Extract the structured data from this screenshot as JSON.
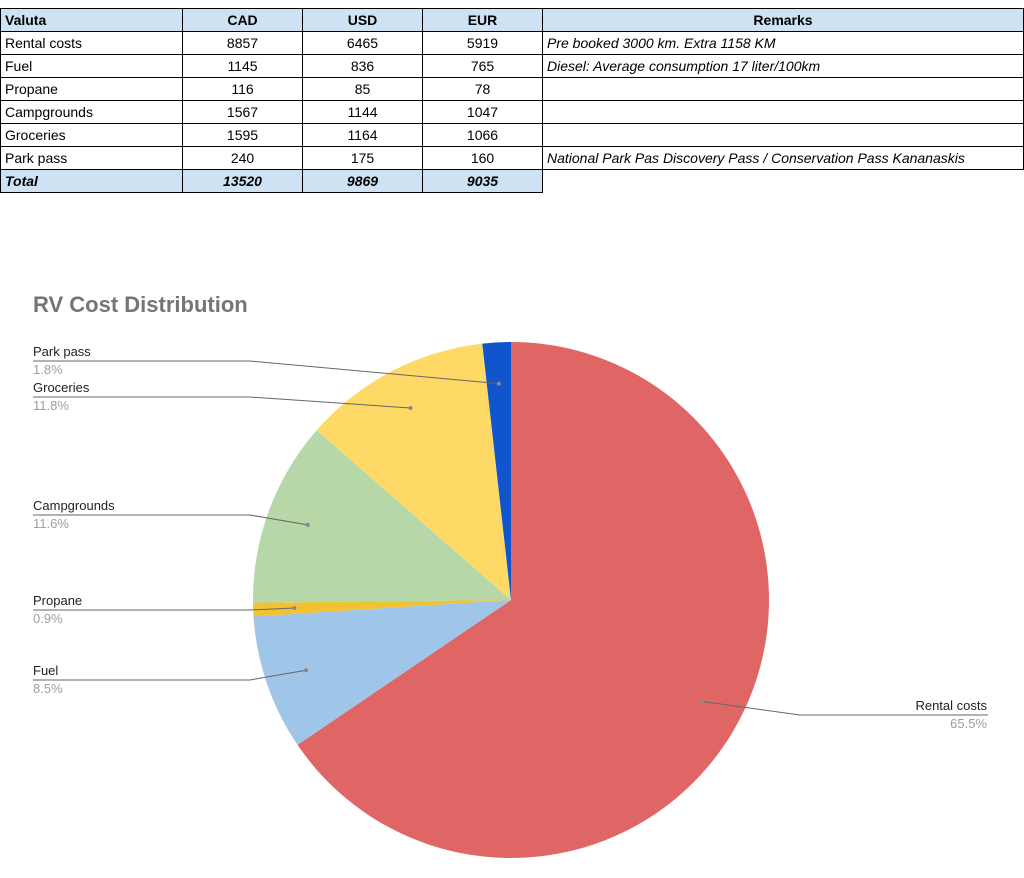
{
  "table": {
    "headers": [
      "Valuta",
      "CAD",
      "USD",
      "EUR",
      "Remarks"
    ],
    "rows": [
      {
        "label": "Rental costs",
        "cad": "8857",
        "usd": "6465",
        "eur": "5919",
        "remarks": "Pre booked 3000 km. Extra 1158 KM"
      },
      {
        "label": "Fuel",
        "cad": "1145",
        "usd": "836",
        "eur": "765",
        "remarks": "Diesel: Average consumption 17 liter/100km"
      },
      {
        "label": "Propane",
        "cad": "116",
        "usd": "85",
        "eur": "78",
        "remarks": ""
      },
      {
        "label": "Campgrounds",
        "cad": "1567",
        "usd": "1144",
        "eur": "1047",
        "remarks": ""
      },
      {
        "label": "Groceries",
        "cad": "1595",
        "usd": "1164",
        "eur": "1066",
        "remarks": ""
      },
      {
        "label": "Park pass",
        "cad": "240",
        "usd": "175",
        "eur": "160",
        "remarks": "National Park Pas Discovery Pass / Conservation Pass Kananaskis"
      }
    ],
    "total": {
      "label": "Total",
      "cad": "13520",
      "usd": "9869",
      "eur": "9035"
    }
  },
  "chart_data": {
    "type": "pie",
    "title": "RV Cost Distribution",
    "legend": "none",
    "slices": [
      {
        "name": "Rental costs",
        "value": 8857,
        "percent_label": "65.5%",
        "color": "#e06666"
      },
      {
        "name": "Fuel",
        "value": 1145,
        "percent_label": "8.5%",
        "color": "#9fc5e8"
      },
      {
        "name": "Propane",
        "value": 116,
        "percent_label": "0.9%",
        "color": "#f1c232"
      },
      {
        "name": "Campgrounds",
        "value": 1567,
        "percent_label": "11.6%",
        "color": "#b6d7a8"
      },
      {
        "name": "Groceries",
        "value": 1595,
        "percent_label": "11.8%",
        "color": "#ffd966"
      },
      {
        "name": "Park pass",
        "value": 240,
        "percent_label": "1.8%",
        "color": "#1155cc"
      }
    ]
  }
}
